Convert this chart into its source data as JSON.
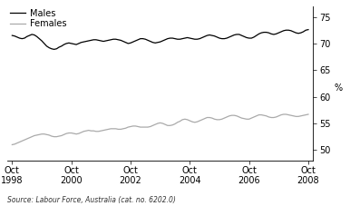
{
  "title": "",
  "ylabel": "%",
  "source": "Source: Labour Force, Australia (cat. no. 6202.0)",
  "x_tick_labels": [
    "Oct\n1998",
    "Oct\n2000",
    "Oct\n2002",
    "Oct\n2004",
    "Oct\n2006",
    "Oct\n2008"
  ],
  "x_tick_years": [
    1998,
    2000,
    2002,
    2004,
    2006,
    2008
  ],
  "ylim": [
    48,
    77
  ],
  "yticks": [
    50,
    55,
    60,
    65,
    70,
    75
  ],
  "legend_males": "Males",
  "legend_females": "Females",
  "males_color": "#000000",
  "females_color": "#aaaaaa",
  "background_color": "#ffffff",
  "males_data": [
    71.5,
    71.4,
    71.2,
    71.0,
    70.9,
    71.0,
    71.3,
    71.5,
    71.7,
    71.6,
    71.3,
    70.9,
    70.5,
    70.0,
    69.5,
    69.2,
    69.0,
    68.9,
    69.0,
    69.3,
    69.5,
    69.8,
    70.0,
    70.1,
    70.0,
    69.9,
    69.8,
    70.0,
    70.2,
    70.3,
    70.4,
    70.5,
    70.6,
    70.7,
    70.7,
    70.6,
    70.5,
    70.4,
    70.5,
    70.6,
    70.7,
    70.8,
    70.8,
    70.7,
    70.6,
    70.4,
    70.2,
    70.0,
    70.1,
    70.3,
    70.5,
    70.7,
    70.9,
    70.9,
    70.8,
    70.6,
    70.4,
    70.2,
    70.1,
    70.2,
    70.3,
    70.5,
    70.7,
    70.9,
    71.0,
    71.0,
    70.9,
    70.8,
    70.8,
    70.9,
    71.0,
    71.1,
    71.0,
    70.9,
    70.8,
    70.8,
    70.9,
    71.1,
    71.3,
    71.5,
    71.6,
    71.5,
    71.4,
    71.2,
    71.0,
    70.9,
    70.9,
    71.0,
    71.2,
    71.4,
    71.6,
    71.7,
    71.7,
    71.5,
    71.3,
    71.1,
    71.0,
    71.0,
    71.2,
    71.5,
    71.8,
    72.0,
    72.1,
    72.1,
    72.0,
    71.8,
    71.7,
    71.8,
    72.0,
    72.2,
    72.4,
    72.5,
    72.5,
    72.4,
    72.2,
    72.0,
    71.9,
    72.0,
    72.2,
    72.5,
    72.6
  ],
  "females_data": [
    51.0,
    51.1,
    51.3,
    51.5,
    51.7,
    51.9,
    52.1,
    52.3,
    52.5,
    52.7,
    52.8,
    52.9,
    53.0,
    53.0,
    52.9,
    52.8,
    52.6,
    52.5,
    52.5,
    52.6,
    52.7,
    52.9,
    53.1,
    53.2,
    53.2,
    53.1,
    53.0,
    53.1,
    53.3,
    53.5,
    53.6,
    53.7,
    53.6,
    53.6,
    53.5,
    53.5,
    53.6,
    53.7,
    53.8,
    53.9,
    54.0,
    54.0,
    54.0,
    53.9,
    53.9,
    54.0,
    54.1,
    54.3,
    54.4,
    54.5,
    54.5,
    54.4,
    54.3,
    54.3,
    54.3,
    54.3,
    54.4,
    54.6,
    54.8,
    55.0,
    55.1,
    55.0,
    54.8,
    54.6,
    54.6,
    54.7,
    54.9,
    55.2,
    55.4,
    55.7,
    55.8,
    55.7,
    55.5,
    55.3,
    55.2,
    55.3,
    55.5,
    55.7,
    55.9,
    56.1,
    56.1,
    56.0,
    55.8,
    55.7,
    55.7,
    55.8,
    56.0,
    56.2,
    56.4,
    56.5,
    56.5,
    56.4,
    56.2,
    56.0,
    55.9,
    55.8,
    55.8,
    56.0,
    56.2,
    56.4,
    56.6,
    56.6,
    56.5,
    56.4,
    56.2,
    56.1,
    56.1,
    56.2,
    56.4,
    56.6,
    56.7,
    56.7,
    56.6,
    56.5,
    56.4,
    56.3,
    56.3,
    56.4,
    56.5,
    56.6,
    56.7
  ]
}
